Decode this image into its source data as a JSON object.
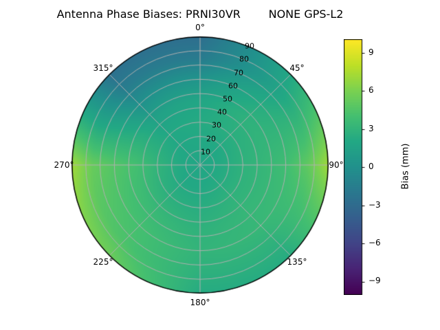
{
  "title": "Antenna Phase Biases: PRNI30VR        NONE GPS-L2",
  "chart_data": {
    "type": "heatmap",
    "projection": "polar",
    "title": "Antenna Phase Biases: PRNI30VR        NONE GPS-L2",
    "theta_zero_location": "N",
    "theta_direction": "clockwise",
    "theta_tick_labels": [
      "0°",
      "45°",
      "90°",
      "135°",
      "180°",
      "225°",
      "270°",
      "315°"
    ],
    "radial_ticks": [
      10,
      20,
      30,
      40,
      50,
      60,
      70,
      80,
      90
    ],
    "radial_tick_labels": [
      "10",
      "20",
      "30",
      "40",
      "50",
      "60",
      "70",
      "80",
      "90"
    ],
    "radial_max": 90,
    "radial_label_azimuth_deg": 22.5,
    "colorbar": {
      "label": "Bias (mm)",
      "ticks": [
        9,
        6,
        3,
        0,
        -3,
        -6,
        -9
      ],
      "tick_labels": [
        "9",
        "6",
        "3",
        "0",
        "−3",
        "−6",
        "−9"
      ],
      "vmin": -10,
      "vmax": 10
    },
    "colormap": {
      "name": "viridis",
      "stops": [
        [
          0.0,
          "#440154"
        ],
        [
          0.1,
          "#482475"
        ],
        [
          0.2,
          "#414487"
        ],
        [
          0.3,
          "#355f8d"
        ],
        [
          0.4,
          "#2a788e"
        ],
        [
          0.5,
          "#21918c"
        ],
        [
          0.6,
          "#22a884"
        ],
        [
          0.7,
          "#44bf70"
        ],
        [
          0.8,
          "#7ad151"
        ],
        [
          0.9,
          "#bddf26"
        ],
        [
          1.0,
          "#fde725"
        ]
      ]
    },
    "grid": {
      "azimuth_deg": [
        0,
        45,
        90,
        135,
        180,
        225,
        270,
        315,
        360
      ],
      "radius": [
        0,
        15,
        30,
        45,
        60,
        75,
        90
      ],
      "values_mm": [
        [
          1.8,
          2.0,
          2.2,
          1.8,
          0.3,
          -1.8,
          -2.8
        ],
        [
          1.8,
          2.0,
          2.5,
          2.8,
          2.3,
          1.5,
          2.0
        ],
        [
          1.8,
          2.2,
          2.8,
          3.2,
          3.8,
          5.0,
          7.2
        ],
        [
          1.8,
          2.2,
          2.8,
          3.2,
          3.3,
          2.8,
          2.3
        ],
        [
          1.8,
          2.0,
          2.4,
          2.8,
          3.0,
          2.7,
          2.2
        ],
        [
          1.8,
          2.0,
          2.6,
          3.4,
          4.0,
          4.3,
          5.5
        ],
        [
          1.8,
          2.2,
          3.0,
          4.0,
          4.6,
          5.3,
          7.2
        ],
        [
          1.8,
          1.9,
          2.0,
          1.4,
          0.0,
          -1.6,
          -2.6
        ],
        [
          1.8,
          2.0,
          2.2,
          1.8,
          0.3,
          -1.8,
          -2.8
        ]
      ]
    },
    "grid_color": "#b0b0b0",
    "spine_color": "#000000"
  }
}
